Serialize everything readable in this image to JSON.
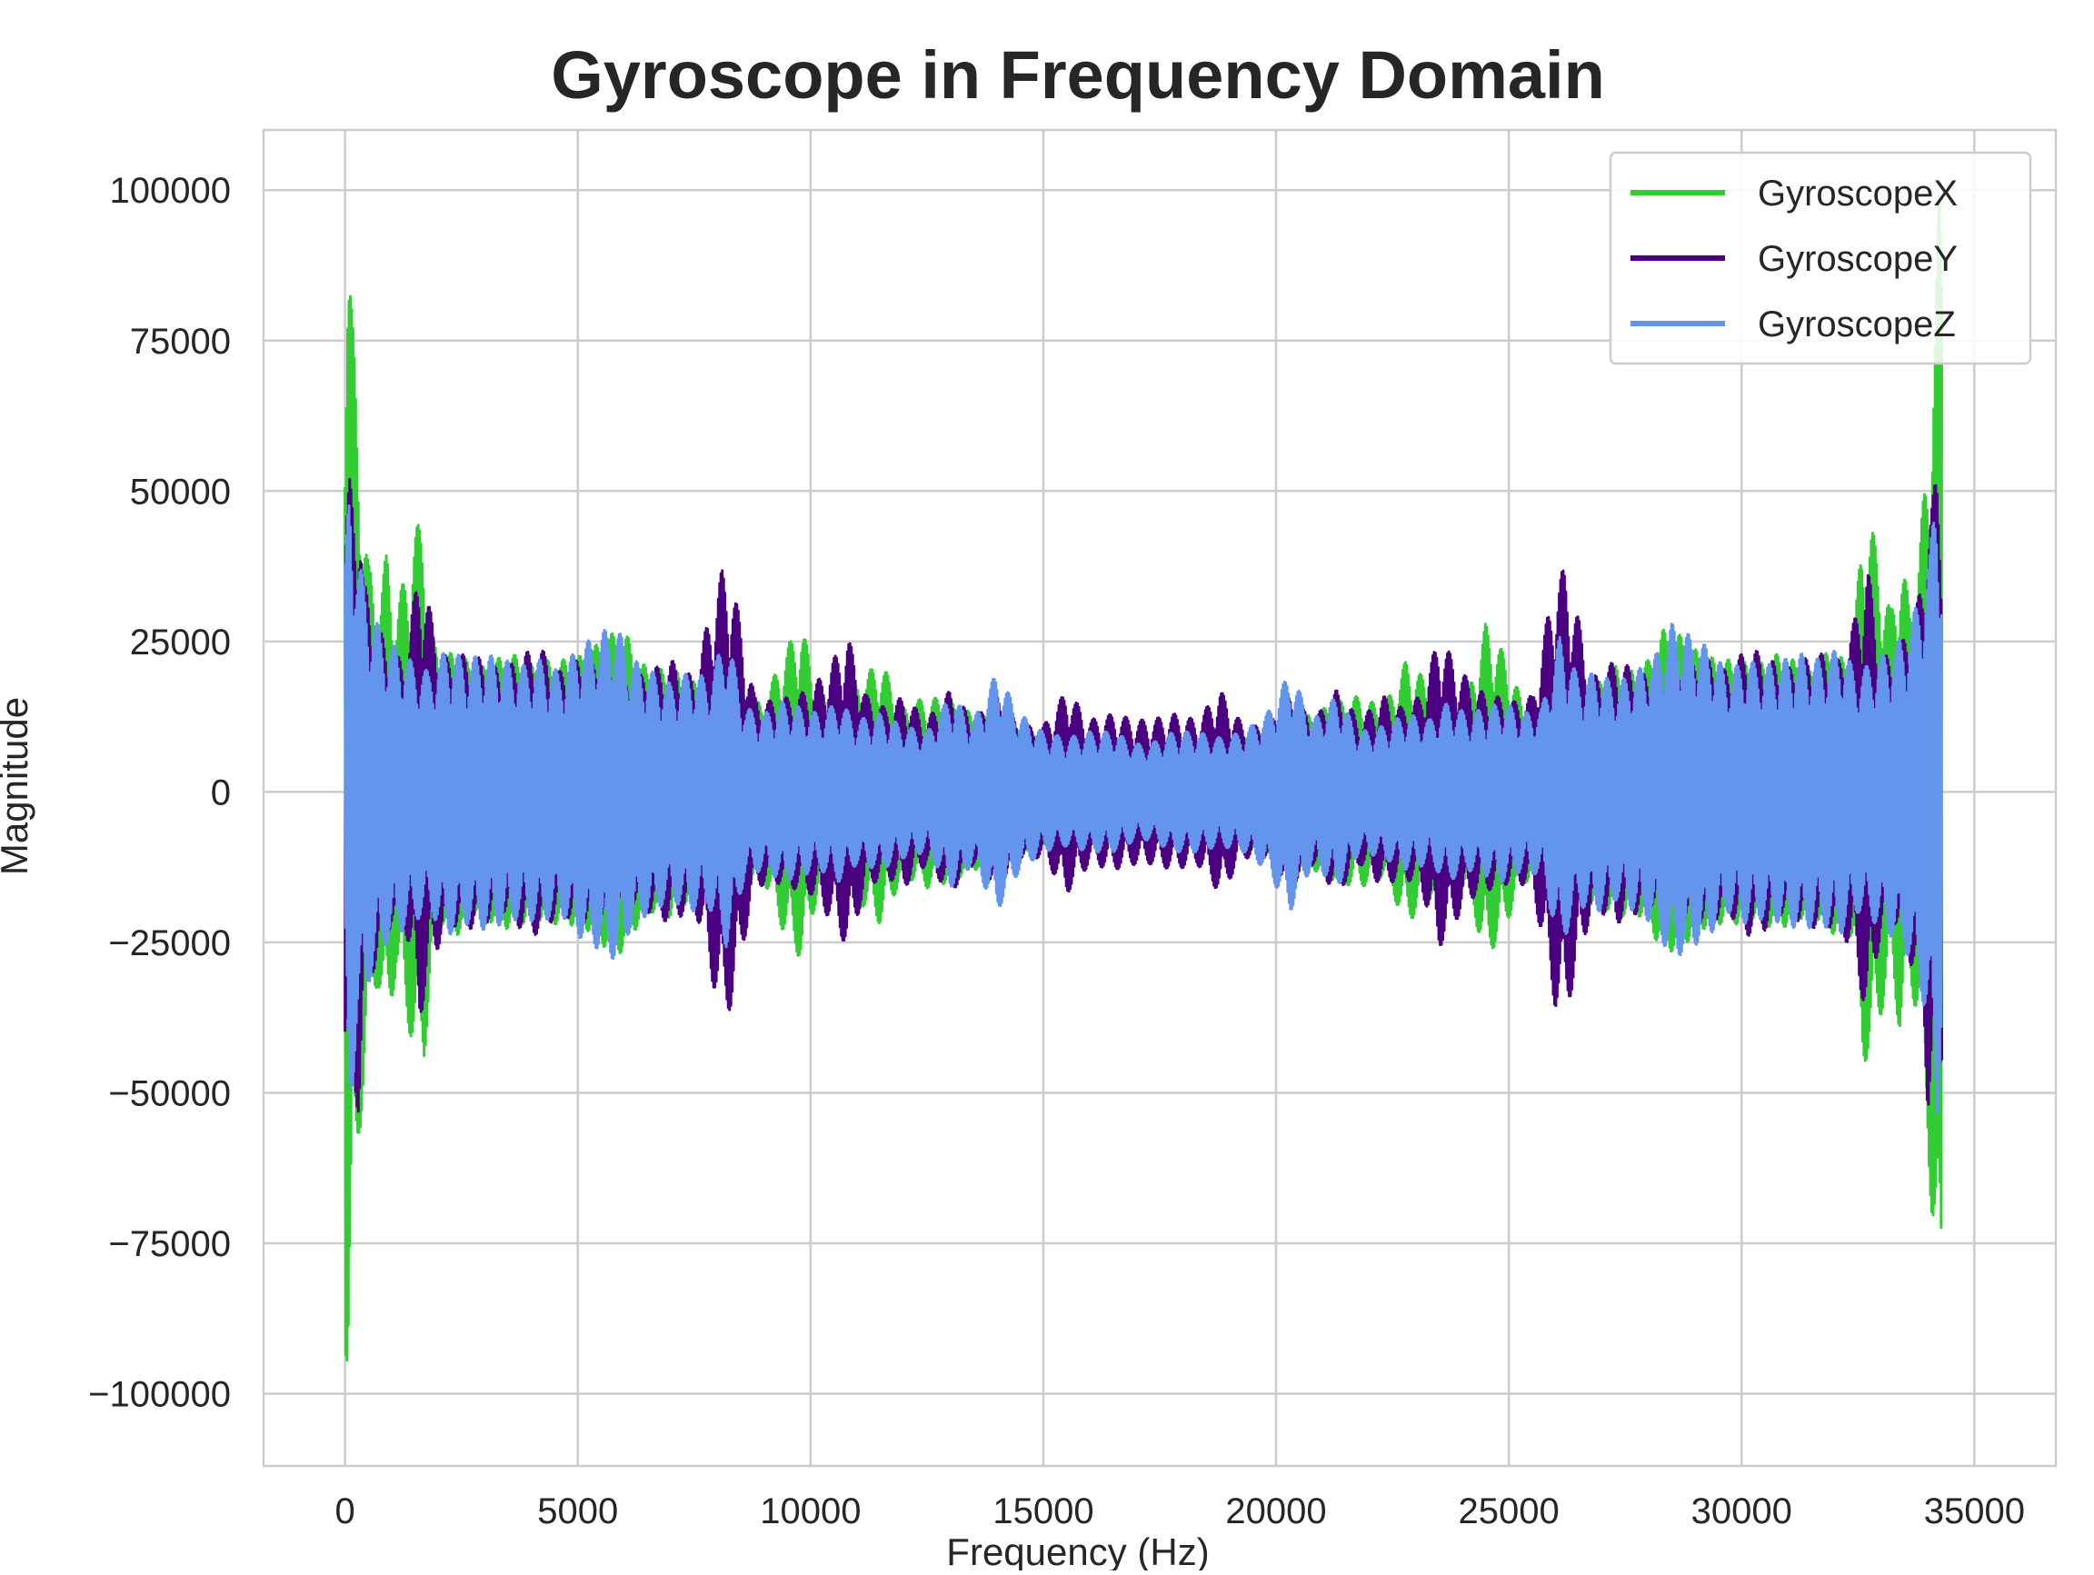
{
  "chart_data": {
    "type": "line",
    "title": "Gyroscope in Frequency Domain",
    "xlabel": "Frequency (Hz)",
    "ylabel": "Magnitude",
    "xlim": [
      -1750,
      36750
    ],
    "ylim": [
      -112000,
      110000
    ],
    "xticks": [
      0,
      5000,
      10000,
      15000,
      20000,
      25000,
      30000,
      35000
    ],
    "xtick_labels": [
      "0",
      "5000",
      "10000",
      "15000",
      "20000",
      "25000",
      "30000",
      "35000"
    ],
    "yticks": [
      100000,
      75000,
      50000,
      25000,
      0,
      -25000,
      -50000,
      -75000,
      -100000
    ],
    "ytick_labels": [
      "100000",
      "75000",
      "50000",
      "25000",
      "0",
      "−25000",
      "−50000",
      "−75000",
      "−100000"
    ],
    "grid": true,
    "legend_position": "upper right",
    "series": [
      {
        "name": "GyroscopeX",
        "color": "#32CD32",
        "envelope": {
          "x": [
            0,
            60,
            150,
            300,
            500,
            700,
            900,
            1100,
            1300,
            1500,
            1700,
            1900,
            2100,
            2400,
            2800,
            3200,
            3600,
            4000,
            4400,
            4800,
            5200,
            5600,
            6000,
            6300,
            6600,
            7000,
            7400,
            7800,
            8200,
            8600,
            9000,
            9400,
            9800,
            10200,
            10600,
            11000,
            11500,
            12000,
            12500,
            13000,
            13500,
            14000,
            14500,
            15000,
            15500,
            16000,
            16500,
            17000
          ],
          "amplitude": [
            92000,
            100000,
            80000,
            59000,
            38000,
            32000,
            40000,
            30000,
            37000,
            44000,
            45000,
            25000,
            22000,
            24000,
            20000,
            22000,
            23000,
            21000,
            22000,
            22000,
            23000,
            26000,
            27000,
            22000,
            20000,
            21000,
            18000,
            20000,
            24000,
            15000,
            15000,
            23000,
            28000,
            16000,
            16000,
            18000,
            22000,
            14000,
            16000,
            15000,
            13000,
            12000,
            10000,
            9000,
            8000,
            8000,
            9000,
            8000
          ]
        }
      },
      {
        "name": "GyroscopeY",
        "color": "#4B0082",
        "envelope": {
          "x": [
            0,
            100,
            200,
            300,
            400,
            600,
            800,
            1000,
            1300,
            1600,
            1900,
            2200,
            2600,
            3000,
            3400,
            3800,
            4200,
            4600,
            5000,
            5500,
            6000,
            6500,
            7000,
            7500,
            7900,
            8100,
            8300,
            8500,
            8800,
            9200,
            9600,
            10000,
            10400,
            10800,
            11200,
            11600,
            12000,
            12500,
            13000,
            13500,
            14000,
            14500,
            15000,
            15500,
            16000,
            16500,
            17000
          ],
          "amplitude": [
            45000,
            52000,
            50000,
            54000,
            35000,
            30000,
            26000,
            22000,
            23000,
            38000,
            28000,
            22000,
            23000,
            22000,
            20000,
            23000,
            24000,
            20000,
            22000,
            21000,
            18000,
            20000,
            22000,
            19000,
            32000,
            37000,
            36000,
            28000,
            16000,
            15000,
            16000,
            17000,
            21000,
            26000,
            16000,
            14000,
            16000,
            12000,
            17000,
            12000,
            16000,
            11000,
            11000,
            17000,
            12000,
            13000,
            12000
          ]
        }
      },
      {
        "name": "GyroscopeZ",
        "color": "#6495ED",
        "envelope": {
          "x": [
            0,
            100,
            250,
            500,
            800,
            1100,
            1400,
            1800,
            2200,
            2600,
            3000,
            3400,
            3800,
            4200,
            4600,
            5000,
            5400,
            5800,
            6200,
            6600,
            7000,
            7400,
            7800,
            8200,
            8600,
            9000,
            9400,
            9800,
            10200,
            10600,
            11000,
            11500,
            12000,
            12500,
            13000,
            13500,
            14000,
            14500,
            15000,
            15500,
            16000,
            16500,
            17000
          ],
          "amplitude": [
            38000,
            55000,
            40000,
            32000,
            26000,
            24000,
            22000,
            20000,
            24000,
            22000,
            23000,
            22000,
            21000,
            22000,
            20000,
            24000,
            26000,
            28000,
            22000,
            20000,
            18000,
            20000,
            19000,
            26000,
            14000,
            13000,
            15000,
            14000,
            13000,
            15000,
            12000,
            13000,
            11000,
            10000,
            16000,
            12000,
            20000,
            13000,
            10000,
            9000,
            10000,
            10000,
            8000
          ]
        }
      }
    ]
  }
}
